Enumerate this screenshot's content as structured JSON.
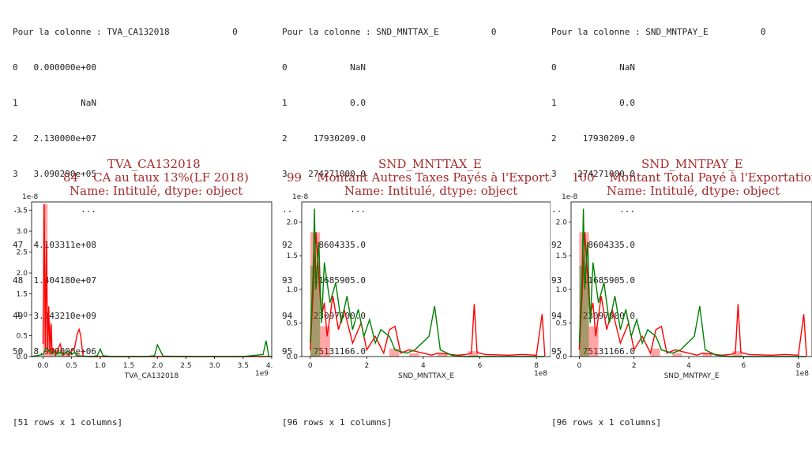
{
  "panels": [
    {
      "text_lines": [
        "Pour la colonne : TVA_CA132018            0",
        "0   0.000000e+00",
        "1            NaN",
        "2   2.130000e+07",
        "3   3.090290e+05",
        "..           ...",
        "47  4.103311e+08",
        "48  1.404180e+07",
        "49  3.943210e+09",
        "50  8.950000e+06",
        "",
        "[51 rows x 1 columns]"
      ],
      "plot_title": {
        "line1": "TVA_CA132018",
        "line2": "84    CA au taux 13%(LF 2018)",
        "line3": "Name: Intitulé, dtype: object"
      },
      "axis_scale_label": "1e-8",
      "xaxis_offset_label": "1e9",
      "xlabel": "TVA_CA132018"
    },
    {
      "text_lines": [
        "Pour la colonne : SND_MNTTAX_E          0",
        "0            NaN",
        "1            0.0",
        "2     17930209.0",
        "3    274271000.0",
        "..           ...",
        "92     8604335.0",
        "93    11685905.0",
        "94    23097900.0",
        "95    75131166.0",
        "",
        "[96 rows x 1 columns]"
      ],
      "plot_title": {
        "line1": "SND_MNTTAX_E",
        "line2": "99    Montant Autres Taxes Payés à l'Exportati",
        "line3": "Name: Intitulé, dtype: object"
      },
      "axis_scale_label": "1e-8",
      "xaxis_offset_label": "1e8",
      "xlabel": "SND_MNTTAX_E"
    },
    {
      "text_lines": [
        "Pour la colonne : SND_MNTPAY_E          0",
        "0            NaN",
        "1            0.0",
        "2     17930209.0",
        "3    274271000.0",
        "..           ...",
        "92     8604335.0",
        "93    11685905.0",
        "94    23097900.0",
        "95    75131166.0",
        "",
        "[96 rows x 1 columns]"
      ],
      "plot_title": {
        "line1": "SND_MNTPAY_E",
        "line2": "100    Montant Total Payé à l'Exportation",
        "line3": "Name: Intitulé, dtype: object"
      },
      "axis_scale_label": "1e-8",
      "xaxis_offset_label": "1e8",
      "xlabel": "SND_MNTPAY_E"
    }
  ],
  "chart_data": [
    {
      "type": "area",
      "title": "",
      "xlabel": "TVA_CA132018",
      "ylabel": "",
      "x_offset": "1e9",
      "y_offset": "1e-8",
      "xlim": [
        -0.2,
        4.0
      ],
      "ylim": [
        0,
        3.7
      ],
      "xticks": [
        "0.0",
        "0.5",
        "1.0",
        "1.5",
        "2.0",
        "2.5",
        "3.0",
        "3.5",
        "4.0"
      ],
      "yticks": [
        "0.0",
        "0.5",
        "1.0",
        "1.5",
        "2.0",
        "2.5",
        "3.0",
        "3.5"
      ],
      "grid": false,
      "colors": {
        "series_a": "#ff0000",
        "series_b": "#008000"
      },
      "bars": [
        {
          "x0": 0.0,
          "x1": 0.08,
          "height": 3.65,
          "color": "red"
        },
        {
          "x0": 0.08,
          "x1": 0.16,
          "height": 0.75,
          "color": "red"
        },
        {
          "x0": 0.16,
          "x1": 0.24,
          "height": 0.15,
          "color": "green"
        },
        {
          "x0": 0.24,
          "x1": 0.32,
          "height": 0.12,
          "color": "green"
        },
        {
          "x0": 0.32,
          "x1": 0.4,
          "height": 0.1,
          "color": "red"
        },
        {
          "x0": 0.4,
          "x1": 0.48,
          "height": 0.08,
          "color": "green"
        },
        {
          "x0": 0.56,
          "x1": 0.64,
          "height": 0.08,
          "color": "red"
        }
      ],
      "series": [
        {
          "x": [
            0,
            0.02,
            0.04,
            0.06,
            0.08,
            0.1,
            0.12,
            0.14,
            0.16,
            0.18,
            0.22,
            0.3,
            0.35,
            0.4,
            0.45,
            0.5,
            0.55,
            0.6,
            0.63,
            0.66,
            0.7,
            0.8,
            0.95,
            1.0,
            1.05,
            1.5,
            1.9,
            1.95,
            2.0,
            2.5,
            3.0,
            3.5,
            3.85,
            3.9,
            3.95
          ],
          "y": [
            0.3,
            3.65,
            0.2,
            2.7,
            0.1,
            1.2,
            0.05,
            0.8,
            0.05,
            0.2,
            0.03,
            0.3,
            0.03,
            0.1,
            0.02,
            0.15,
            0.2,
            0.55,
            0.65,
            0.5,
            0.01,
            0.0,
            0.0,
            0.0,
            0.0,
            0.0,
            0.0,
            0.0,
            0.0,
            0.0,
            0.0,
            0.0,
            0.0,
            0.0,
            0.0
          ]
        },
        {
          "x": [
            -0.2,
            0,
            0.02,
            0.05,
            0.1,
            0.15,
            0.2,
            0.25,
            0.3,
            0.35,
            0.4,
            0.45,
            0.5,
            0.55,
            0.6,
            0.7,
            0.85,
            0.95,
            1.0,
            1.05,
            1.2,
            1.8,
            1.95,
            2.0,
            2.1,
            2.5,
            3.0,
            3.5,
            3.85,
            3.9,
            3.95,
            4.0
          ],
          "y": [
            0,
            0.05,
            0.1,
            0.2,
            0.15,
            0.1,
            0.12,
            0.08,
            0.1,
            0.05,
            0.1,
            0.12,
            0.05,
            0.1,
            0.02,
            0.01,
            0.0,
            0.02,
            0.18,
            0.02,
            0.0,
            0.0,
            0.02,
            0.28,
            0.01,
            0.0,
            0.0,
            0.0,
            0.05,
            0.38,
            0.0,
            0.0
          ]
        }
      ]
    },
    {
      "type": "area",
      "title": "",
      "xlabel": "SND_MNTTAX_E",
      "ylabel": "",
      "x_offset": "1e8",
      "y_offset": "1e-8",
      "xlim": [
        -0.3,
        8.5
      ],
      "ylim": [
        0,
        2.3
      ],
      "xticks": [
        "0",
        "2",
        "4",
        "6",
        "8"
      ],
      "yticks": [
        "0.0",
        "0.5",
        "1.0",
        "1.5",
        "2.0"
      ],
      "grid": false,
      "colors": {
        "series_a": "#ff0000",
        "series_b": "#008000"
      },
      "bars": [
        {
          "x0": 0.0,
          "x1": 0.35,
          "height": 1.85,
          "color": "red"
        },
        {
          "x0": 0.0,
          "x1": 0.35,
          "height": 1.35,
          "color": "green"
        },
        {
          "x0": 0.35,
          "x1": 0.7,
          "height": 0.45,
          "color": "red"
        },
        {
          "x0": 2.8,
          "x1": 3.15,
          "height": 0.12,
          "color": "red"
        },
        {
          "x0": 3.5,
          "x1": 3.85,
          "height": 0.05,
          "color": "red"
        },
        {
          "x0": 4.5,
          "x1": 4.85,
          "height": 0.05,
          "color": "red"
        },
        {
          "x0": 5.6,
          "x1": 5.95,
          "height": 0.08,
          "color": "red"
        }
      ],
      "series": [
        {
          "x": [
            0,
            0.1,
            0.2,
            0.3,
            0.4,
            0.5,
            0.6,
            0.8,
            1.0,
            1.2,
            1.5,
            1.8,
            2.0,
            2.3,
            2.6,
            2.8,
            3.0,
            3.2,
            3.5,
            4.0,
            4.3,
            4.5,
            4.8,
            5.2,
            5.5,
            5.7,
            5.8,
            5.9,
            6.2,
            7.0,
            7.5,
            8.0,
            8.2,
            8.3
          ],
          "y": [
            0.1,
            0.9,
            1.85,
            1.2,
            0.6,
            0.8,
            0.3,
            0.9,
            0.4,
            0.7,
            0.2,
            0.5,
            0.1,
            0.3,
            0.05,
            0.4,
            0.45,
            0.05,
            0.1,
            0.05,
            0.02,
            0.05,
            0.04,
            0.02,
            0.03,
            0.05,
            0.78,
            0.06,
            0.03,
            0.02,
            0.03,
            0.02,
            0.63,
            0.01
          ]
        },
        {
          "x": [
            0,
            0.1,
            0.15,
            0.2,
            0.3,
            0.4,
            0.5,
            0.7,
            0.9,
            1.1,
            1.3,
            1.5,
            1.7,
            1.9,
            2.1,
            2.3,
            2.5,
            2.8,
            3.0,
            3.4,
            3.7,
            4.2,
            4.4,
            4.6,
            5.0,
            5.5,
            6.0,
            6.5,
            7.0,
            7.5,
            8.0,
            8.3
          ],
          "y": [
            0.2,
            1.2,
            2.2,
            1.0,
            1.7,
            0.5,
            1.4,
            0.8,
            1.1,
            0.5,
            0.9,
            0.4,
            0.7,
            0.3,
            0.55,
            0.2,
            0.4,
            0.3,
            0.1,
            0.05,
            0.1,
            0.3,
            0.75,
            0.1,
            0.02,
            0.0,
            0.0,
            0.0,
            0.0,
            0.0,
            0.0,
            0.0
          ]
        }
      ]
    },
    {
      "type": "area",
      "title": "",
      "xlabel": "SND_MNTPAY_E",
      "ylabel": "",
      "x_offset": "1e8",
      "y_offset": "1e-8",
      "xlim": [
        -0.3,
        8.5
      ],
      "ylim": [
        0,
        2.3
      ],
      "xticks": [
        "0",
        "2",
        "4",
        "6",
        "8"
      ],
      "yticks": [
        "0.0",
        "0.5",
        "1.0",
        "1.5",
        "2.0"
      ],
      "grid": false,
      "colors": {
        "series_a": "#ff0000",
        "series_b": "#008000"
      },
      "bars": [
        {
          "x0": 0.0,
          "x1": 0.35,
          "height": 1.85,
          "color": "red"
        },
        {
          "x0": 0.0,
          "x1": 0.35,
          "height": 1.35,
          "color": "green"
        },
        {
          "x0": 0.35,
          "x1": 0.7,
          "height": 0.45,
          "color": "red"
        },
        {
          "x0": 2.6,
          "x1": 2.95,
          "height": 0.12,
          "color": "red"
        },
        {
          "x0": 3.4,
          "x1": 3.75,
          "height": 0.05,
          "color": "red"
        },
        {
          "x0": 4.5,
          "x1": 4.85,
          "height": 0.05,
          "color": "red"
        },
        {
          "x0": 5.6,
          "x1": 5.95,
          "height": 0.08,
          "color": "red"
        }
      ],
      "series": [
        {
          "x": [
            0,
            0.1,
            0.2,
            0.3,
            0.4,
            0.5,
            0.6,
            0.8,
            1.0,
            1.2,
            1.5,
            1.8,
            2.0,
            2.3,
            2.6,
            2.8,
            3.0,
            3.2,
            3.5,
            4.0,
            4.3,
            4.5,
            4.8,
            5.2,
            5.5,
            5.7,
            5.8,
            5.9,
            6.2,
            7.0,
            7.5,
            8.0,
            8.2,
            8.3
          ],
          "y": [
            0.1,
            0.9,
            1.85,
            1.2,
            0.6,
            0.8,
            0.3,
            0.9,
            0.4,
            0.7,
            0.2,
            0.5,
            0.1,
            0.3,
            0.05,
            0.4,
            0.45,
            0.05,
            0.1,
            0.05,
            0.02,
            0.05,
            0.04,
            0.02,
            0.03,
            0.05,
            0.78,
            0.06,
            0.03,
            0.02,
            0.03,
            0.02,
            0.63,
            0.01
          ]
        },
        {
          "x": [
            0,
            0.1,
            0.15,
            0.2,
            0.3,
            0.4,
            0.5,
            0.7,
            0.9,
            1.1,
            1.3,
            1.5,
            1.7,
            1.9,
            2.1,
            2.3,
            2.5,
            2.8,
            3.0,
            3.4,
            3.7,
            4.2,
            4.4,
            4.6,
            5.0,
            5.5,
            6.0,
            6.5,
            7.0,
            7.5,
            8.0,
            8.3
          ],
          "y": [
            0.2,
            1.2,
            2.2,
            1.0,
            1.7,
            0.5,
            1.4,
            0.8,
            1.1,
            0.5,
            0.9,
            0.4,
            0.7,
            0.3,
            0.55,
            0.2,
            0.4,
            0.3,
            0.1,
            0.05,
            0.1,
            0.3,
            0.75,
            0.1,
            0.02,
            0.0,
            0.0,
            0.0,
            0.0,
            0.0,
            0.0,
            0.0
          ]
        }
      ]
    }
  ]
}
